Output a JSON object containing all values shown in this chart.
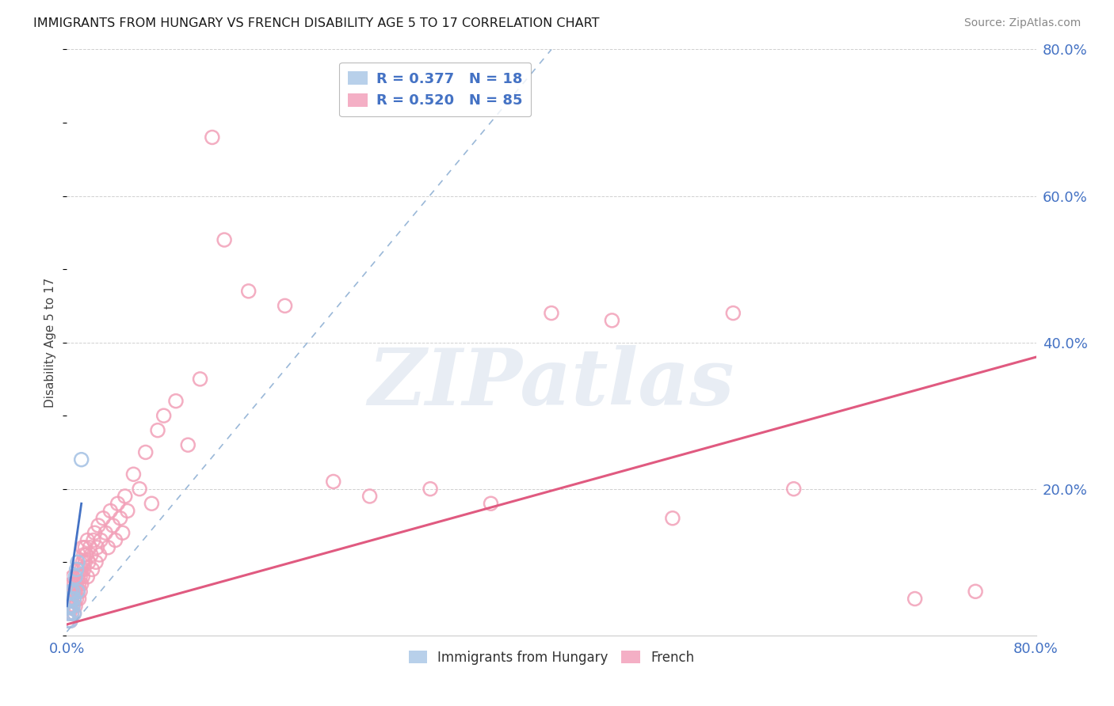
{
  "title": "IMMIGRANTS FROM HUNGARY VS FRENCH DISABILITY AGE 5 TO 17 CORRELATION CHART",
  "source": "Source: ZipAtlas.com",
  "ylabel": "Disability Age 5 to 17",
  "xlim": [
    0.0,
    0.8
  ],
  "ylim": [
    0.0,
    0.8
  ],
  "blue_R": 0.377,
  "blue_N": 18,
  "pink_R": 0.52,
  "pink_N": 85,
  "blue_scatter_color": "#a8c4e5",
  "blue_line_color": "#4472c4",
  "pink_scatter_color": "#f2a0b8",
  "pink_line_color": "#e05a80",
  "legend_label_blue": "Immigrants from Hungary",
  "legend_label_pink": "French",
  "watermark_text": "ZIPatlas",
  "blue_trend_x0": 0.0,
  "blue_trend_y0": 0.005,
  "blue_trend_x1": 0.4,
  "blue_trend_y1": 0.8,
  "pink_trend_x0": 0.0,
  "pink_trend_y0": 0.015,
  "pink_trend_x1": 0.8,
  "pink_trend_y1": 0.38,
  "blue_x": [
    0.001,
    0.001,
    0.002,
    0.002,
    0.003,
    0.003,
    0.003,
    0.004,
    0.004,
    0.005,
    0.005,
    0.006,
    0.006,
    0.007,
    0.008,
    0.009,
    0.009,
    0.012
  ],
  "blue_y": [
    0.02,
    0.03,
    0.04,
    0.05,
    0.02,
    0.04,
    0.06,
    0.03,
    0.05,
    0.04,
    0.06,
    0.03,
    0.05,
    0.08,
    0.09,
    0.06,
    0.1,
    0.24
  ],
  "pink_x": [
    0.001,
    0.001,
    0.002,
    0.002,
    0.003,
    0.003,
    0.003,
    0.004,
    0.004,
    0.004,
    0.005,
    0.005,
    0.005,
    0.006,
    0.006,
    0.006,
    0.007,
    0.007,
    0.008,
    0.008,
    0.009,
    0.009,
    0.01,
    0.01,
    0.01,
    0.011,
    0.011,
    0.012,
    0.012,
    0.013,
    0.013,
    0.013,
    0.014,
    0.014,
    0.015,
    0.015,
    0.016,
    0.017,
    0.017,
    0.018,
    0.019,
    0.02,
    0.021,
    0.022,
    0.023,
    0.024,
    0.025,
    0.026,
    0.027,
    0.028,
    0.03,
    0.032,
    0.034,
    0.036,
    0.038,
    0.04,
    0.042,
    0.044,
    0.046,
    0.048,
    0.05,
    0.055,
    0.06,
    0.065,
    0.07,
    0.075,
    0.08,
    0.09,
    0.1,
    0.11,
    0.12,
    0.13,
    0.15,
    0.18,
    0.22,
    0.25,
    0.3,
    0.35,
    0.4,
    0.45,
    0.5,
    0.55,
    0.6,
    0.7,
    0.75
  ],
  "pink_y": [
    0.02,
    0.04,
    0.03,
    0.05,
    0.02,
    0.04,
    0.06,
    0.03,
    0.05,
    0.07,
    0.04,
    0.06,
    0.08,
    0.03,
    0.05,
    0.07,
    0.04,
    0.06,
    0.05,
    0.07,
    0.06,
    0.08,
    0.05,
    0.07,
    0.09,
    0.06,
    0.08,
    0.07,
    0.09,
    0.08,
    0.1,
    0.12,
    0.09,
    0.11,
    0.1,
    0.12,
    0.11,
    0.08,
    0.13,
    0.1,
    0.12,
    0.11,
    0.09,
    0.13,
    0.14,
    0.1,
    0.12,
    0.15,
    0.11,
    0.13,
    0.16,
    0.14,
    0.12,
    0.17,
    0.15,
    0.13,
    0.18,
    0.16,
    0.14,
    0.19,
    0.17,
    0.22,
    0.2,
    0.25,
    0.18,
    0.28,
    0.3,
    0.32,
    0.26,
    0.35,
    0.68,
    0.54,
    0.47,
    0.45,
    0.21,
    0.19,
    0.2,
    0.18,
    0.44,
    0.43,
    0.16,
    0.44,
    0.2,
    0.05,
    0.06
  ]
}
